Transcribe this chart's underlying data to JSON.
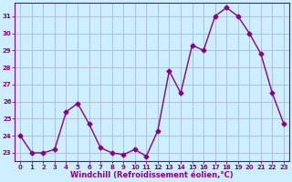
{
  "x": [
    0,
    1,
    2,
    3,
    4,
    5,
    6,
    7,
    8,
    9,
    10,
    11,
    12,
    13,
    14,
    15,
    16,
    17,
    18,
    19,
    20,
    21,
    22,
    23
  ],
  "y": [
    24.0,
    23.0,
    23.0,
    23.2,
    25.4,
    25.9,
    24.7,
    23.3,
    23.0,
    22.9,
    23.2,
    22.8,
    24.3,
    27.8,
    26.5,
    29.3,
    29.0,
    31.0,
    31.5,
    31.0,
    30.0,
    28.8,
    26.5,
    24.7
  ],
  "line_color": "#880088",
  "marker": "D",
  "markersize": 2.5,
  "bg_color": "#cceeff",
  "grid_color": "#aabbcc",
  "xlabel": "Windchill (Refroidissement éolien,°C)",
  "xlabel_color": "#880088",
  "tick_color": "#880088",
  "spine_color": "#880088",
  "ylim": [
    22.5,
    31.8
  ],
  "xlim": [
    -0.5,
    23.5
  ],
  "yticks": [
    23,
    24,
    25,
    26,
    27,
    28,
    29,
    30,
    31
  ],
  "xticks": [
    0,
    1,
    2,
    3,
    4,
    5,
    6,
    7,
    8,
    9,
    10,
    11,
    12,
    13,
    14,
    15,
    16,
    17,
    18,
    19,
    20,
    21,
    22,
    23
  ],
  "tick_fontsize": 5.0,
  "xlabel_fontsize": 6.0,
  "linewidth": 1.0
}
